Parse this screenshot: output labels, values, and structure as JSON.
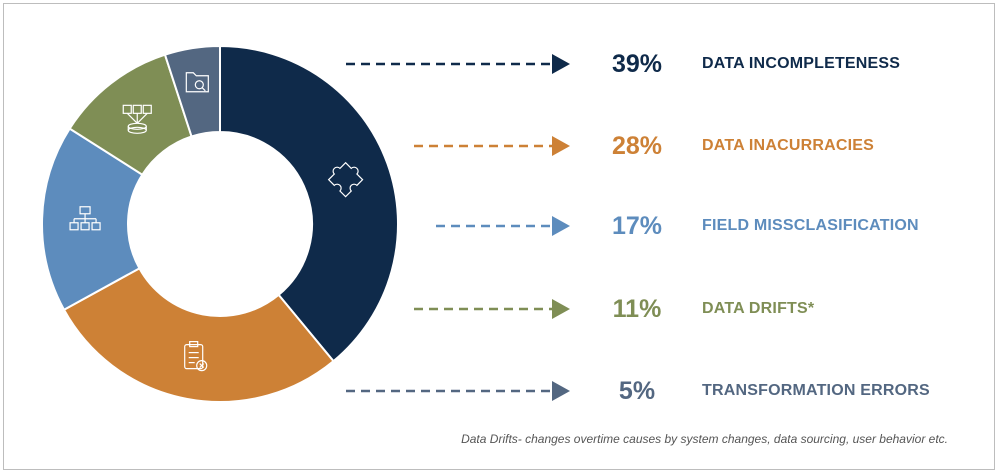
{
  "chart_data": {
    "type": "pie",
    "variant": "donut",
    "categories": [
      "DATA INCOMPLETENESS",
      "DATA INACURRACIES",
      "FIELD MISSCLASIFICATION",
      "DATA DRIFTS*",
      "TRANSFORMATION ERRORS"
    ],
    "values": [
      39,
      28,
      17,
      11,
      5
    ],
    "value_labels": [
      "39%",
      "28%",
      "17%",
      "11%",
      "5%"
    ],
    "colors": [
      "#0f2a4a",
      "#cd8136",
      "#5d8cbd",
      "#7f8e55",
      "#536781"
    ],
    "icons": [
      "puzzle-icon",
      "clipboard-error-icon",
      "hierarchy-icon",
      "data-network-icon",
      "folder-search-icon"
    ],
    "legend_placement": "right",
    "footnote": "Data Drifts- changes overtime causes by system changes, data sourcing, user behavior etc."
  }
}
